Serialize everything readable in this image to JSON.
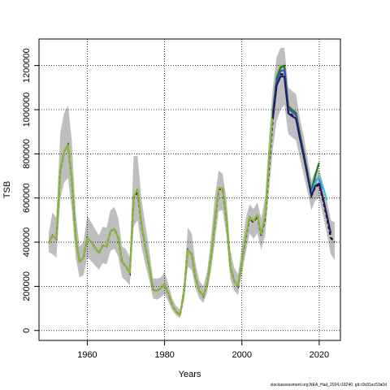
{
  "footer": "stockassessment.org,NEA_Had_2024,r18240, git:c9c81ac53a0d",
  "chart_data": {
    "type": "line",
    "title": "",
    "xlabel": "Years",
    "ylabel": "TSB",
    "xlim": [
      1947.5,
      2025.5
    ],
    "ylim": [
      -45000,
      1320000
    ],
    "xticks": [
      1960,
      1980,
      2000,
      2020
    ],
    "xtick_labels": [
      "1960",
      "1980",
      "2000",
      "2020"
    ],
    "yticks": [
      0,
      200000,
      400000,
      600000,
      800000,
      1000000,
      1200000
    ],
    "ytick_labels": [
      "0",
      "200000",
      "400000",
      "600000",
      "800000",
      "1000000",
      "1200000"
    ],
    "grid": true,
    "grid_style": "dotted",
    "colors": {
      "band": "#bebebe",
      "main": "#000000",
      "green_dark": "#1a7a2a",
      "green_light": "#8ab43c",
      "blue": "#3a54c8",
      "cyan": "#46c0d8",
      "navy": "#1e1e60"
    },
    "estimate": {
      "x": [
        1950,
        1951,
        1952,
        1953,
        1954,
        1955,
        1956,
        1957,
        1958,
        1959,
        1960,
        1961,
        1962,
        1963,
        1964,
        1965,
        1966,
        1967,
        1968,
        1969,
        1970,
        1971,
        1972,
        1973,
        1974,
        1975,
        1976,
        1977,
        1978,
        1979,
        1980,
        1981,
        1982,
        1983,
        1984,
        1985,
        1986,
        1987,
        1988,
        1989,
        1990,
        1991,
        1992,
        1993,
        1994,
        1995,
        1996,
        1997,
        1998,
        1999,
        2000,
        2001,
        2002,
        2003,
        2004,
        2005,
        2006,
        2007,
        2008,
        2009,
        2010,
        2011,
        2012,
        2013,
        2014,
        2015,
        2016,
        2017,
        2018,
        2019,
        2020,
        2021,
        2022,
        2023,
        2024
      ],
      "y": [
        395000,
        430000,
        415000,
        720000,
        810000,
        840000,
        680000,
        420000,
        310000,
        330000,
        420000,
        400000,
        375000,
        350000,
        385000,
        380000,
        450000,
        460000,
        420000,
        310000,
        290000,
        260000,
        600000,
        630000,
        480000,
        380000,
        290000,
        185000,
        180000,
        190000,
        210000,
        165000,
        115000,
        85000,
        70000,
        170000,
        365000,
        345000,
        240000,
        180000,
        155000,
        210000,
        330000,
        490000,
        640000,
        640000,
        510000,
        290000,
        225000,
        200000,
        310000,
        420000,
        510000,
        490000,
        520000,
        430000,
        510000,
        740000,
        960000,
        1110000,
        1160000,
        1160000,
        990000,
        975000,
        960000,
        870000,
        790000,
        700000,
        610000,
        650000,
        660000,
        590000,
        510000,
        420000,
        400000
      ],
      "lower": [
        355000,
        345000,
        330000,
        595000,
        670000,
        690000,
        545000,
        330000,
        240000,
        250000,
        330000,
        315000,
        295000,
        275000,
        305000,
        300000,
        360000,
        370000,
        335000,
        240000,
        225000,
        205000,
        470000,
        500000,
        380000,
        300000,
        230000,
        145000,
        140000,
        150000,
        165000,
        130000,
        90000,
        68000,
        55000,
        135000,
        290000,
        275000,
        190000,
        145000,
        125000,
        170000,
        270000,
        400000,
        540000,
        545000,
        430000,
        235000,
        180000,
        160000,
        255000,
        350000,
        440000,
        415000,
        440000,
        365000,
        430000,
        630000,
        820000,
        950000,
        1000000,
        1020000,
        890000,
        875000,
        860000,
        780000,
        705000,
        625000,
        545000,
        590000,
        600000,
        520000,
        435000,
        345000,
        320000
      ],
      "upper": [
        440000,
        535000,
        510000,
        895000,
        985000,
        1020000,
        860000,
        530000,
        380000,
        400000,
        520000,
        490000,
        460000,
        430000,
        470000,
        465000,
        545000,
        560000,
        510000,
        380000,
        370000,
        330000,
        790000,
        790000,
        600000,
        480000,
        370000,
        235000,
        235000,
        240000,
        265000,
        210000,
        145000,
        110000,
        95000,
        215000,
        465000,
        440000,
        305000,
        225000,
        200000,
        265000,
        420000,
        605000,
        725000,
        710000,
        600000,
        365000,
        285000,
        255000,
        380000,
        510000,
        570000,
        550000,
        580000,
        510000,
        600000,
        870000,
        1100000,
        1240000,
        1280000,
        1280000,
        1100000,
        1085000,
        1070000,
        960000,
        880000,
        780000,
        680000,
        720000,
        730000,
        665000,
        590000,
        500000,
        490000
      ]
    },
    "retro_peels": [
      {
        "name": "",
        "color_key": "green_light",
        "x": [
          1950,
          1951,
          1952,
          1953,
          1954,
          1955,
          1956,
          1957,
          1958,
          1959,
          1960,
          1961,
          1962,
          1963,
          1964,
          1965,
          1966,
          1967,
          1968,
          1969,
          1970,
          1971,
          1972,
          1973,
          1974,
          1975,
          1976,
          1977,
          1978,
          1979,
          1980,
          1981,
          1982,
          1983,
          1984,
          1985,
          1986,
          1987,
          1988,
          1989,
          1990,
          1991,
          1992,
          1993,
          1994,
          1995,
          1996,
          1997,
          1998,
          1999,
          2000,
          2001,
          2002,
          2003,
          2004,
          2005,
          2006,
          2007,
          2008,
          2009,
          2010,
          2011,
          2012,
          2013,
          2014,
          2015,
          2016,
          2017,
          2018,
          2019
        ],
        "y": [
          395000,
          430000,
          415000,
          720000,
          810000,
          840000,
          680000,
          420000,
          310000,
          330000,
          420000,
          400000,
          375000,
          350000,
          385000,
          380000,
          450000,
          460000,
          420000,
          310000,
          290000,
          260000,
          605000,
          640000,
          485000,
          380000,
          290000,
          185000,
          180000,
          190000,
          210000,
          165000,
          115000,
          85000,
          70000,
          170000,
          365000,
          345000,
          240000,
          180000,
          155000,
          210000,
          330000,
          495000,
          645000,
          645000,
          515000,
          290000,
          225000,
          200000,
          310000,
          425000,
          515000,
          495000,
          525000,
          435000,
          520000,
          760000,
          990000,
          1150000,
          1200000,
          1190000,
          1020000,
          1000000,
          985000,
          890000,
          810000,
          720000,
          640000,
          700000
        ]
      },
      {
        "name": "",
        "color_key": "green_dark",
        "x": [
          2008,
          2009,
          2010,
          2011,
          2012,
          2013,
          2014,
          2015,
          2016,
          2017,
          2018,
          2019,
          2020
        ],
        "y": [
          985000,
          1140000,
          1190000,
          1200000,
          1015000,
          1000000,
          985000,
          890000,
          805000,
          705000,
          630000,
          705000,
          760000
        ]
      },
      {
        "name": "",
        "color_key": "blue",
        "x": [
          2008,
          2009,
          2010,
          2011,
          2012,
          2013,
          2014,
          2015,
          2016,
          2017,
          2018,
          2019,
          2020,
          2021
        ],
        "y": [
          970000,
          1125000,
          1175000,
          1180000,
          1005000,
          990000,
          975000,
          880000,
          800000,
          710000,
          620000,
          680000,
          690000,
          640000
        ]
      },
      {
        "name": "",
        "color_key": "cyan",
        "x": [
          2017,
          2018,
          2019,
          2020,
          2021,
          2022
        ],
        "y": [
          705000,
          615000,
          670000,
          700000,
          650000,
          590000
        ]
      },
      {
        "name": "",
        "color_key": "navy",
        "x": [
          2008,
          2009,
          2010,
          2011,
          2012,
          2013,
          2014,
          2015,
          2016,
          2017,
          2018,
          2019,
          2020,
          2021,
          2022,
          2023
        ],
        "y": [
          960000,
          1110000,
          1150000,
          1150000,
          985000,
          970000,
          960000,
          870000,
          790000,
          700000,
          610000,
          655000,
          665000,
          600000,
          520000,
          440000
        ]
      }
    ]
  }
}
